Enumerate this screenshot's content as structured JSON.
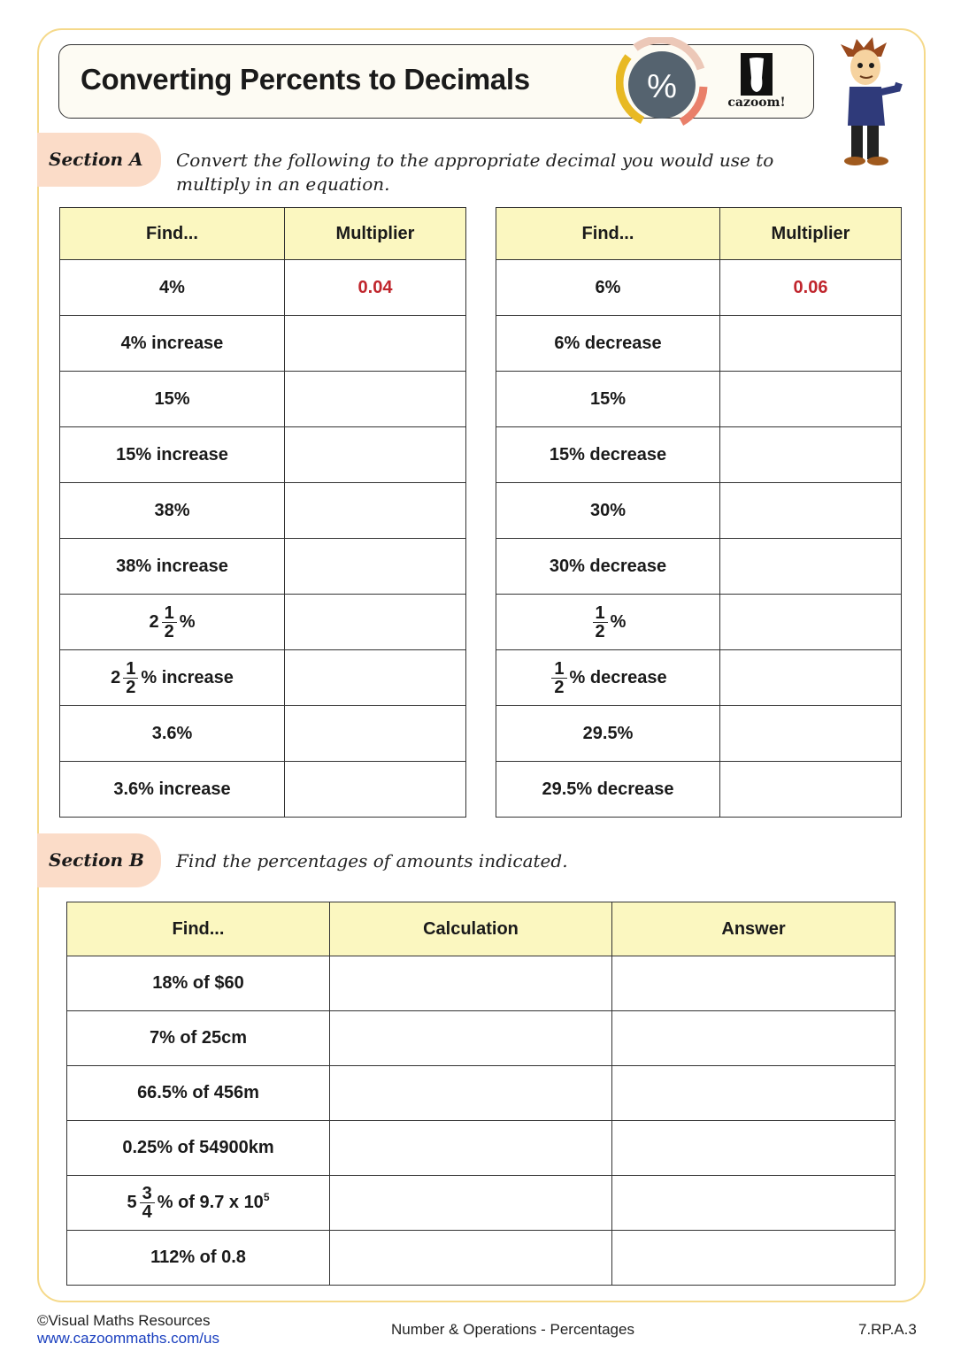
{
  "header": {
    "title": "Converting Percents to Decimals",
    "badge_symbol": "%",
    "logo_text": "cazoom!",
    "colors": {
      "badge": "#55636f",
      "ring_yellow": "#e8b923",
      "ring_salmon": "#e9806a",
      "ring_peach": "#ecc8b8",
      "section_tab": "#fbdcc8",
      "table_header": "#fbf7c0",
      "answer_red": "#c0262d",
      "border_gold": "#f5d98a"
    }
  },
  "sectionA": {
    "label": "Section A",
    "instruction": "Convert the following to the appropriate decimal you would use to multiply in an equation.",
    "headers": [
      "Find...",
      "Multiplier"
    ],
    "left": [
      {
        "text": "4%",
        "answer": "0.04"
      },
      {
        "text": "4% increase"
      },
      {
        "text": "15%"
      },
      {
        "text": "15% increase"
      },
      {
        "text": "38%"
      },
      {
        "text": "38% increase"
      },
      {
        "whole": "2",
        "num": "1",
        "den": "2",
        "after": "%"
      },
      {
        "whole": "2",
        "num": "1",
        "den": "2",
        "after": "% increase"
      },
      {
        "text": "3.6%"
      },
      {
        "text": "3.6% increase"
      }
    ],
    "right": [
      {
        "text": "6%",
        "answer": "0.06"
      },
      {
        "text": "6% decrease"
      },
      {
        "text": "15%"
      },
      {
        "text": "15% decrease"
      },
      {
        "text": "30%"
      },
      {
        "text": "30% decrease"
      },
      {
        "whole": "",
        "num": "1",
        "den": "2",
        "after": "%"
      },
      {
        "whole": "",
        "num": "1",
        "den": "2",
        "after": "% decrease"
      },
      {
        "text": "29.5%"
      },
      {
        "text": "29.5% decrease"
      }
    ]
  },
  "sectionB": {
    "label": "Section B",
    "instruction": "Find the percentages of amounts indicated.",
    "headers": [
      "Find...",
      "Calculation",
      "Answer"
    ],
    "rows": [
      {
        "text": "18% of $60"
      },
      {
        "text": "7% of 25cm"
      },
      {
        "text": "66.5% of 456m"
      },
      {
        "text": "0.25% of 54900km"
      },
      {
        "whole": "5",
        "num": "3",
        "den": "4",
        "after": "% of 9.7 x 10",
        "sup": "5"
      },
      {
        "text": "112% of 0.8"
      }
    ]
  },
  "footer": {
    "copyright": "©Visual Maths Resources",
    "link": "www.cazoommaths.com/us",
    "topic": "Number & Operations - Percentages",
    "standard": "7.RP.A.3"
  }
}
